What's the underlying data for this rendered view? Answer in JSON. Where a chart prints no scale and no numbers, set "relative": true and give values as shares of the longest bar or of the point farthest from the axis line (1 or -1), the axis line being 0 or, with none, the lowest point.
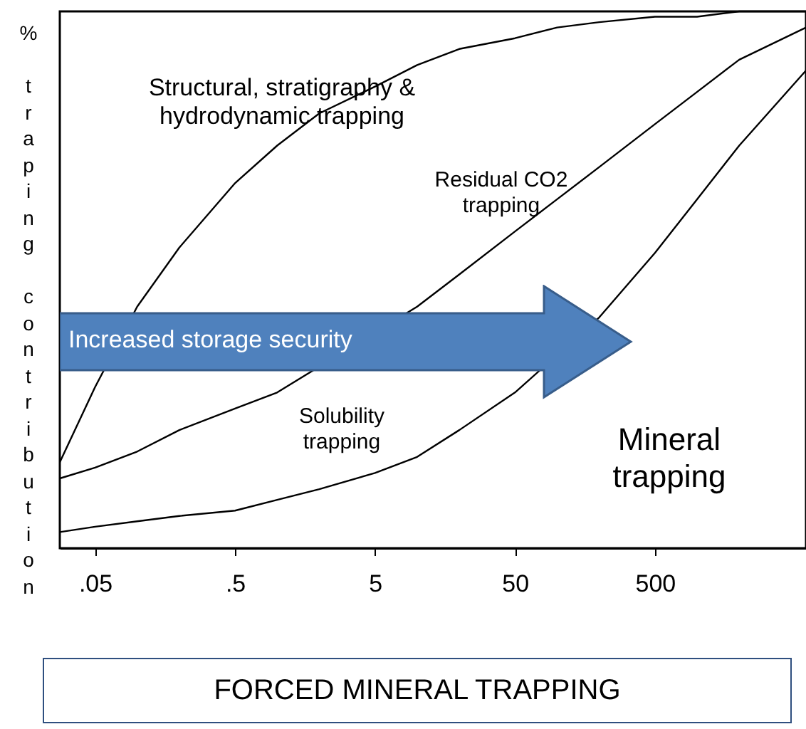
{
  "chart_data": {
    "type": "line",
    "relative": true,
    "log": "x",
    "grid": false,
    "marker": "none",
    "xlabel": "FORCED MINERAL TRAPPING",
    "ylabel": "% traping contribution",
    "xlim": [
      0.028,
      6000
    ],
    "xticks": [
      {
        "value": 0.05,
        "label": ".05"
      },
      {
        "value": 0.5,
        "label": ".5"
      },
      5,
      50,
      500
    ],
    "x": [
      0.028,
      0.05,
      0.1,
      0.2,
      0.5,
      1,
      2,
      5,
      10,
      20,
      50,
      100,
      200,
      500,
      1000,
      2000,
      6000
    ],
    "series": [
      {
        "color": "#000000",
        "values": [
          0.16,
          0.3,
          0.45,
          0.56,
          0.68,
          0.75,
          0.81,
          0.86,
          0.9,
          0.93,
          0.95,
          0.97,
          0.98,
          0.99,
          0.99,
          1.0,
          1.0
        ]
      },
      {
        "color": "#000000",
        "values": [
          0.13,
          0.15,
          0.18,
          0.22,
          0.26,
          0.29,
          null,
          null,
          0.45,
          0.51,
          0.59,
          0.65,
          0.71,
          0.79,
          0.85,
          0.91,
          0.97
        ]
      },
      {
        "color": "#000000",
        "values": [
          0.03,
          0.04,
          0.05,
          0.06,
          0.07,
          0.09,
          0.11,
          0.14,
          0.17,
          0.22,
          0.29,
          null,
          0.43,
          0.55,
          0.65,
          0.75,
          0.89
        ]
      }
    ],
    "annotations": [
      "Structural, stratigraphy & hydrodynamic trapping",
      "Residual CO2 trapping",
      "Increased storage security",
      "Solubility trapping",
      "Mineral trapping"
    ]
  }
}
